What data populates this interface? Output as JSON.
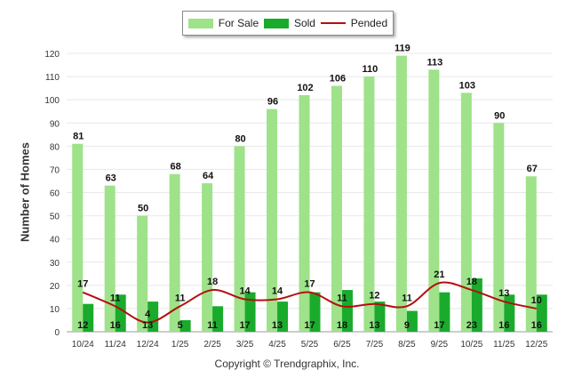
{
  "legend": {
    "for_sale": "For Sale",
    "sold": "Sold",
    "pended": "Pended"
  },
  "colors": {
    "for_sale": "#9ee28a",
    "sold": "#1aab2c",
    "pended": "#b50f0f",
    "grid": "#e8e8e8"
  },
  "footer": "Copyright © Trendgraphix, Inc.",
  "chart_data": {
    "type": "bar",
    "categories": [
      "10/24",
      "11/24",
      "12/24",
      "1/25",
      "2/25",
      "3/25",
      "4/25",
      "5/25",
      "6/25",
      "7/25",
      "8/25",
      "9/25",
      "10/25",
      "11/25",
      "12/25"
    ],
    "series": [
      {
        "name": "For Sale",
        "type": "bar",
        "values": [
          81,
          63,
          50,
          68,
          64,
          80,
          96,
          102,
          106,
          110,
          119,
          113,
          103,
          90,
          67
        ]
      },
      {
        "name": "Sold",
        "type": "bar",
        "values": [
          12,
          16,
          13,
          5,
          11,
          17,
          13,
          17,
          18,
          13,
          9,
          17,
          23,
          16,
          16
        ]
      },
      {
        "name": "Pended",
        "type": "line",
        "values": [
          17,
          11,
          4,
          11,
          18,
          14,
          14,
          17,
          11,
          12,
          11,
          21,
          18,
          13,
          10
        ]
      }
    ],
    "xlabel": "",
    "ylabel": "Number of Homes",
    "ylim": [
      0,
      120
    ],
    "yticks": [
      0,
      10,
      20,
      30,
      40,
      50,
      60,
      70,
      80,
      90,
      100,
      110,
      120
    ],
    "grid": true,
    "legend_position": "top-center"
  }
}
